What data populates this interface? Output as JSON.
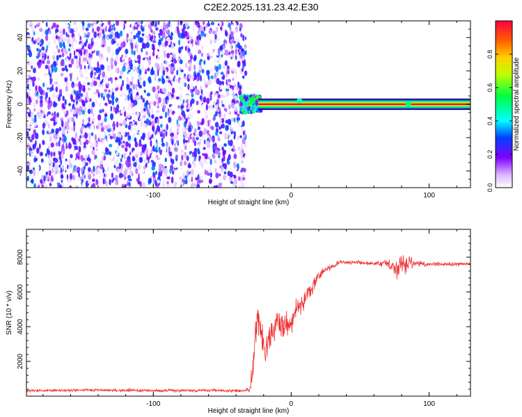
{
  "title": "C2E2.2025.131.23.42.E30",
  "colorbar": {
    "label": "Normalized spectral amplitude",
    "ticks": [
      "0.0",
      "0.2",
      "0.4",
      "0.6",
      "0.8"
    ],
    "tick_values": [
      0.0,
      0.2,
      0.4,
      0.6,
      0.8
    ],
    "range": [
      0,
      1
    ]
  },
  "chart_data": [
    {
      "type": "heatmap",
      "xlabel": "Height of straight line (km)",
      "ylabel": "Frequency (Hz)",
      "xlim": [
        -192,
        130
      ],
      "ylim": [
        -50,
        50
      ],
      "xticks": [
        "-100",
        "0",
        "100"
      ],
      "xtick_values": [
        -100,
        0,
        100
      ],
      "yticks": [
        "-40",
        "-20",
        "0",
        "20",
        "40"
      ],
      "ytick_values": [
        -40,
        -20,
        0,
        20,
        40
      ],
      "noise_region": {
        "x": [
          -192,
          -35
        ],
        "amplitude": [
          0.0,
          0.35
        ]
      },
      "transition_region": {
        "x": [
          -37,
          -22
        ],
        "y": [
          -5,
          5
        ],
        "amplitude": [
          0.1,
          0.6
        ]
      },
      "carrier_line": {
        "x": [
          -24,
          130
        ],
        "y": 0,
        "peak_amplitude": 1.0,
        "edge_amplitude": 0.5
      },
      "bumps": [
        {
          "x": -28,
          "y": 3,
          "amplitude": 0.55
        },
        {
          "x": 6,
          "y": 2,
          "amplitude": 0.45
        },
        {
          "x": 85,
          "y": 0,
          "amplitude": 0.5
        }
      ]
    },
    {
      "type": "line",
      "xlabel": "Height of straight line (km)",
      "ylabel": "SNR (10 * v/v)",
      "xlim": [
        -192,
        130
      ],
      "ylim": [
        0,
        9600
      ],
      "xticks": [
        "-100",
        "0",
        "100"
      ],
      "xtick_values": [
        -100,
        0,
        100
      ],
      "yticks": [
        "2000",
        "4000",
        "6000",
        "8000"
      ],
      "ytick_values": [
        2000,
        4000,
        6000,
        8000
      ],
      "color": "#f03030",
      "series": [
        {
          "x": [
            -192,
            -150,
            -100,
            -60,
            -35,
            -30,
            -28,
            -26,
            -24,
            -22,
            -20,
            -18,
            -15,
            -10,
            -5,
            0,
            5,
            10,
            15,
            20,
            25,
            30,
            35,
            40,
            50,
            60,
            70,
            75,
            80,
            85,
            90,
            100,
            110,
            120,
            130
          ],
          "values": [
            300,
            350,
            320,
            330,
            310,
            400,
            1500,
            3500,
            4500,
            3800,
            3000,
            2500,
            3500,
            4000,
            4300,
            4200,
            5200,
            5600,
            6200,
            6900,
            7300,
            7500,
            7700,
            7700,
            7700,
            7600,
            7600,
            7400,
            7700,
            7700,
            7650,
            7600,
            7600,
            7600,
            7600
          ],
          "noise": [
            120,
            120,
            120,
            120,
            120,
            200,
            1300,
            1500,
            1500,
            1400,
            1400,
            1300,
            1300,
            1200,
            1100,
            1000,
            900,
            800,
            600,
            400,
            300,
            250,
            200,
            180,
            180,
            200,
            350,
            700,
            1200,
            900,
            250,
            180,
            180,
            180,
            180
          ]
        }
      ]
    }
  ]
}
